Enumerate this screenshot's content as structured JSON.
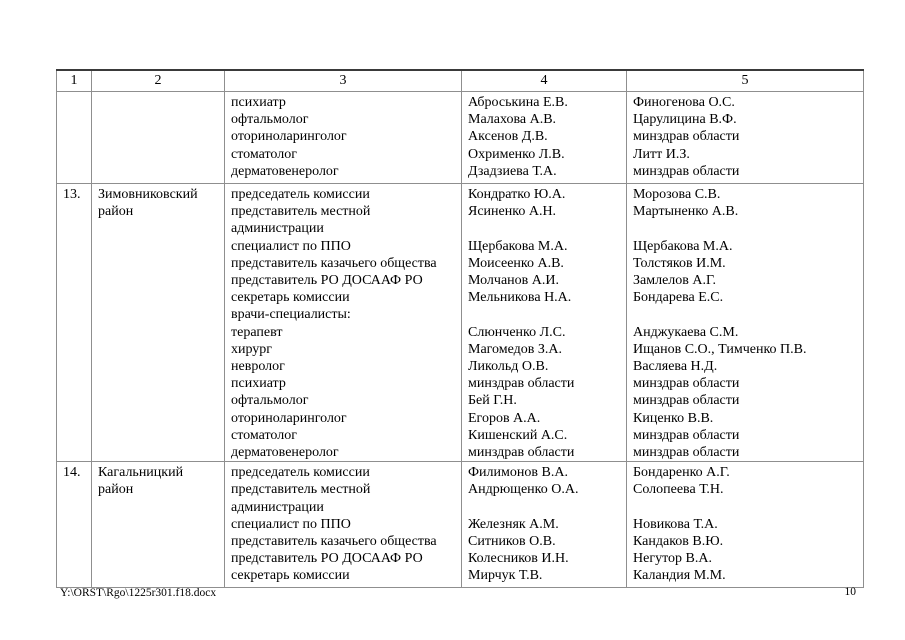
{
  "page": {
    "footer_path": "Y:\\ORST\\Rgo\\1225r301.f18.docx",
    "page_number": "10"
  },
  "table": {
    "headers": [
      "1",
      "2",
      "3",
      "4",
      "5"
    ],
    "rows": [
      {
        "num": "",
        "district": [],
        "roles": [
          "психиатр",
          "офтальмолог",
          "оториноларинголог",
          "стоматолог",
          "дерматовенеролог"
        ],
        "members": [
          "Аброськина Е.В.",
          "Малахова А.В.",
          "Аксенов Д.В.",
          "Охрименко Л.В.",
          "Дзадзиева Т.А."
        ],
        "reserves": [
          "Финогенова О.С.",
          "Царулицина В.Ф.",
          "минздрав области",
          "Литт И.З.",
          "минздрав области"
        ]
      },
      {
        "num": "13.",
        "district": [
          "Зимовниковский",
          "район"
        ],
        "roles": [
          "председатель комиссии",
          "представитель местной",
          "администрации",
          "специалист по ППО",
          "представитель казачьего общества",
          "представитель РО ДОСААФ РО",
          "секретарь комиссии",
          "врачи-специалисты:",
          "терапевт",
          "хирург",
          "невролог",
          "психиатр",
          "офтальмолог",
          "оториноларинголог",
          "стоматолог",
          "дерматовенеролог"
        ],
        "members": [
          "Кондратко Ю.А.",
          "Ясиненко А.Н.",
          "",
          "Щербакова М.А.",
          "Моисеенко А.В.",
          "Молчанов А.И.",
          "Мельникова Н.А.",
          "",
          "Слюнченко Л.С.",
          "Магомедов З.А.",
          "Ликольд О.В.",
          "минздрав области",
          "Бей Г.Н.",
          "Егоров А.А.",
          "Кишенский А.С.",
          "минздрав области"
        ],
        "reserves": [
          "Морозова С.В.",
          "Мартыненко А.В.",
          "",
          "Щербакова М.А.",
          "Толстяков И.М.",
          "Замлелов А.Г.",
          "Бондарева Е.С.",
          "",
          "Анджукаева С.М.",
          "Ищанов С.О., Тимченко П.В.",
          "Васляева Н.Д.",
          "минздрав области",
          "минздрав области",
          "Киценко В.В.",
          "минздрав области",
          "минздрав области"
        ]
      },
      {
        "num": "14.",
        "district": [
          "Кагальницкий",
          "район"
        ],
        "roles": [
          "председатель комиссии",
          "представитель местной",
          "администрации",
          "специалист по ППО",
          "представитель казачьего общества",
          "представитель РО ДОСААФ РО",
          "секретарь комиссии"
        ],
        "members": [
          "Филимонов В.А.",
          "Андрющенко О.А.",
          "",
          "Железняк А.М.",
          "Ситников О.В.",
          "Колесников И.Н.",
          "Мирчук Т.В."
        ],
        "reserves": [
          "Бондаренко А.Г.",
          "Солопеева Т.Н.",
          "",
          "Новикова Т.А.",
          "Кандаков В.Ю.",
          "Негутор В.А.",
          "Каландия М.М."
        ]
      }
    ]
  }
}
